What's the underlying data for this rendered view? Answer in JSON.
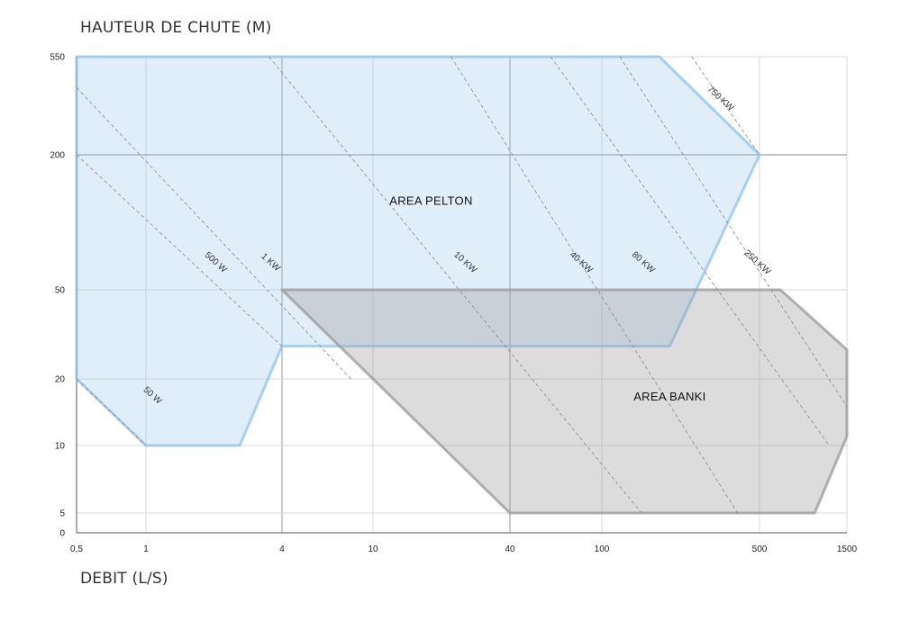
{
  "chart_data": {
    "type": "area",
    "title": "",
    "ylabel": "HAUTEUR DE CHUTE (M)",
    "xlabel": "DEBIT (L/S)",
    "x_ticks": [
      "0,5",
      "1",
      "4",
      "10",
      "40",
      "100",
      "500",
      "1500"
    ],
    "x_tick_values": [
      0.5,
      1,
      4,
      10,
      40,
      100,
      500,
      1500
    ],
    "y_ticks": [
      "0",
      "5",
      "10",
      "20",
      "50",
      "200",
      "550"
    ],
    "y_tick_values": [
      0,
      5,
      10,
      20,
      50,
      200,
      550
    ],
    "xlim": [
      0.5,
      1500
    ],
    "ylim": [
      0,
      550
    ],
    "grid": true,
    "areas": [
      {
        "name": "AREA PELTON",
        "color": "#8fc3ec",
        "points": [
          [
            0.5,
            550
          ],
          [
            180,
            550
          ],
          [
            500,
            200
          ],
          [
            200,
            28
          ],
          [
            4,
            28
          ],
          [
            2.6,
            10
          ],
          [
            1,
            10
          ],
          [
            0.5,
            20
          ]
        ]
      },
      {
        "name": "AREA BANKI",
        "color": "#9a9a9a",
        "points": [
          [
            4,
            50
          ],
          [
            650,
            50
          ],
          [
            1500,
            27
          ],
          [
            1500,
            11
          ],
          [
            1000,
            5
          ],
          [
            40,
            5
          ]
        ]
      }
    ],
    "power_lines": [
      {
        "label": "50 W",
        "p0": [
          0.5,
          20
        ],
        "p1": [
          1,
          10
        ]
      },
      {
        "label": "500 W",
        "p0": [
          0.5,
          200
        ],
        "p1": [
          4,
          28
        ]
      },
      {
        "label": "1 KW",
        "p0": [
          0.5,
          400
        ],
        "p1": [
          8,
          20
        ]
      },
      {
        "label": "10 KW",
        "p0": [
          3.5,
          550
        ],
        "p1": [
          150,
          5
        ]
      },
      {
        "label": "40 KW",
        "p0": [
          22,
          550
        ],
        "p1": [
          400,
          5
        ]
      },
      {
        "label": "80 KW",
        "p0": [
          60,
          550
        ],
        "p1": [
          1200,
          10
        ]
      },
      {
        "label": "250 KW",
        "p0": [
          120,
          550
        ],
        "p1": [
          1500,
          15
        ]
      },
      {
        "label": "750 KW",
        "p0": [
          250,
          550
        ],
        "p1": [
          500,
          200
        ]
      }
    ],
    "power_label_positions": [
      {
        "label": "50 W",
        "x": 1.05,
        "y": 16.5
      },
      {
        "label": "500 W",
        "x": 2.0,
        "y": 65
      },
      {
        "label": "1 KW",
        "x": 3.5,
        "y": 65
      },
      {
        "label": "10 KW",
        "x": 25,
        "y": 65
      },
      {
        "label": "40 KW",
        "x": 80,
        "y": 65
      },
      {
        "label": "80 KW",
        "x": 150,
        "y": 65
      },
      {
        "label": "250 KW",
        "x": 480,
        "y": 65
      },
      {
        "label": "750 KW",
        "x": 330,
        "y": 350
      }
    ]
  }
}
